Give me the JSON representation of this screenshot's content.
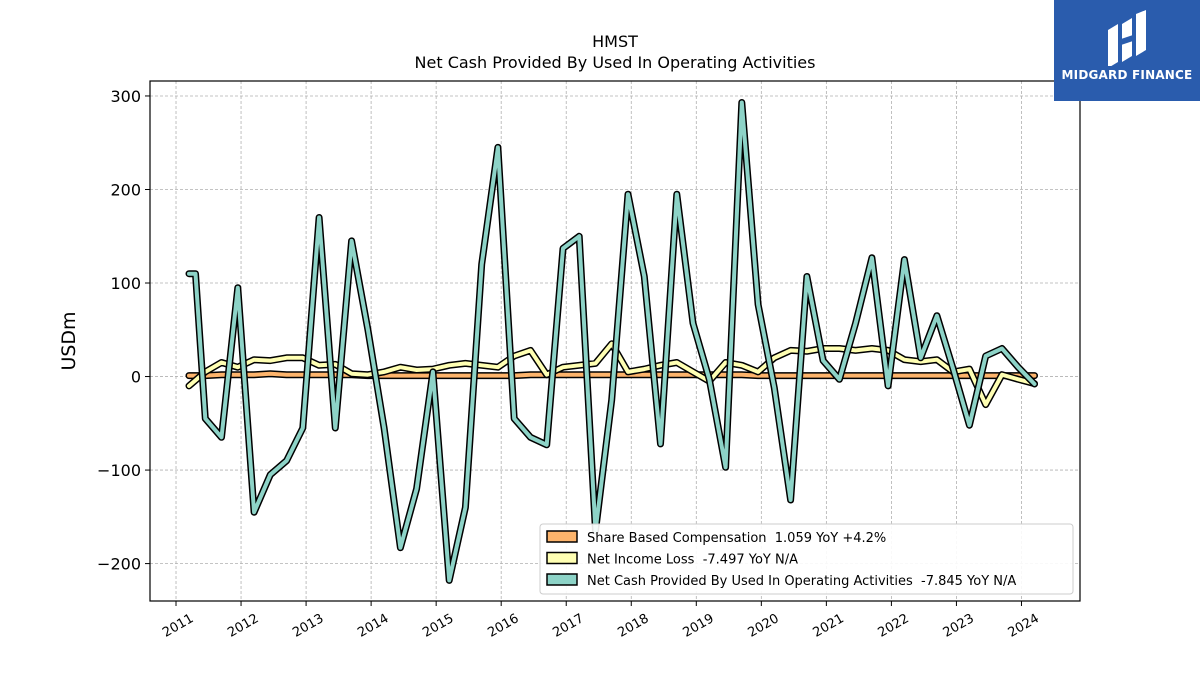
{
  "brand": {
    "name": "MIDGARD FINANCE",
    "bg_color": "#2a5cad"
  },
  "chart_data": {
    "type": "line",
    "title": "HMST",
    "subtitle": "Net Cash Provided By Used In Operating Activities",
    "ylabel": "USDm",
    "xlabel": "",
    "ylim": [
      -240,
      316
    ],
    "xlim": [
      2010.6,
      2024.9
    ],
    "yticks": [
      -200,
      -100,
      0,
      100,
      200,
      300
    ],
    "ytick_labels": [
      "−200",
      "−100",
      "0",
      "100",
      "200",
      "300"
    ],
    "xticks": [
      2011,
      2012,
      2013,
      2014,
      2015,
      2016,
      2017,
      2018,
      2019,
      2020,
      2021,
      2022,
      2023,
      2024
    ],
    "grid": true,
    "legend_position": "bottom-right",
    "series": [
      {
        "name": "Share Based Compensation  1.059 YoY +4.2%",
        "color": "#fdb46c",
        "values_x": [
          2011.2,
          2011.45,
          2011.7,
          2011.95,
          2012.2,
          2012.45,
          2012.7,
          2012.95,
          2013.2,
          2013.45,
          2013.7,
          2013.95,
          2014.2,
          2014.45,
          2014.7,
          2014.95,
          2015.2,
          2015.45,
          2015.7,
          2015.95,
          2016.2,
          2016.45,
          2016.7,
          2016.95,
          2017.2,
          2017.45,
          2017.7,
          2017.95,
          2018.2,
          2018.45,
          2018.7,
          2018.95,
          2019.2,
          2019.45,
          2019.7,
          2019.95,
          2020.2,
          2020.45,
          2020.7,
          2020.95,
          2021.2,
          2021.45,
          2021.7,
          2021.95,
          2022.2,
          2022.45,
          2022.7,
          2022.95,
          2023.2,
          2023.45,
          2023.7,
          2023.95,
          2024.2
        ],
        "values_y": [
          1,
          1,
          2,
          2,
          2,
          3,
          2,
          2,
          2,
          2,
          2,
          1,
          1,
          1,
          1,
          1,
          1,
          1,
          1,
          1,
          1,
          2,
          2,
          2,
          2,
          2,
          2,
          2,
          2,
          2,
          2,
          2,
          2,
          2,
          2,
          1,
          1,
          1,
          1,
          1,
          1,
          1,
          1,
          1,
          1,
          1,
          1,
          1,
          1,
          1,
          1,
          1,
          1
        ]
      },
      {
        "name": "Net Income Loss  -7.497 YoY N/A",
        "color": "#ffffb3",
        "values_x": [
          2011.2,
          2011.45,
          2011.7,
          2011.95,
          2012.2,
          2012.45,
          2012.7,
          2012.95,
          2013.2,
          2013.45,
          2013.7,
          2013.95,
          2014.2,
          2014.45,
          2014.7,
          2014.95,
          2015.2,
          2015.45,
          2015.7,
          2015.95,
          2016.2,
          2016.45,
          2016.7,
          2016.95,
          2017.2,
          2017.45,
          2017.7,
          2017.95,
          2018.2,
          2018.45,
          2018.7,
          2018.95,
          2019.2,
          2019.45,
          2019.7,
          2019.95,
          2020.2,
          2020.45,
          2020.7,
          2020.95,
          2021.2,
          2021.45,
          2021.7,
          2021.95,
          2022.2,
          2022.45,
          2022.7,
          2022.95,
          2023.2,
          2023.45,
          2023.7,
          2023.95,
          2024.2
        ],
        "values_y": [
          -10,
          5,
          15,
          10,
          18,
          17,
          20,
          20,
          12,
          13,
          3,
          2,
          5,
          10,
          7,
          8,
          12,
          14,
          12,
          10,
          22,
          28,
          2,
          10,
          12,
          14,
          35,
          5,
          8,
          12,
          15,
          5,
          -5,
          15,
          12,
          5,
          20,
          28,
          27,
          30,
          30,
          28,
          30,
          28,
          18,
          16,
          18,
          5,
          8,
          -30,
          2,
          -3,
          -7.5
        ]
      },
      {
        "name": "Net Cash Provided By Used In Operating Activities  -7.845 YoY N/A",
        "color": "#8dd3c7",
        "values_x": [
          2011.2,
          2011.3,
          2011.45,
          2011.7,
          2011.95,
          2012.2,
          2012.45,
          2012.7,
          2012.95,
          2013.2,
          2013.45,
          2013.7,
          2013.95,
          2014.2,
          2014.45,
          2014.7,
          2014.95,
          2015.2,
          2015.45,
          2015.7,
          2015.95,
          2016.2,
          2016.45,
          2016.7,
          2016.95,
          2017.2,
          2017.45,
          2017.7,
          2017.95,
          2018.2,
          2018.45,
          2018.7,
          2018.95,
          2019.2,
          2019.45,
          2019.7,
          2019.95,
          2020.2,
          2020.45,
          2020.7,
          2020.95,
          2021.2,
          2021.45,
          2021.7,
          2021.95,
          2022.2,
          2022.45,
          2022.7,
          2022.95,
          2023.2,
          2023.45,
          2023.7,
          2023.95,
          2024.2
        ],
        "values_y": [
          110,
          110,
          -45,
          -65,
          95,
          -145,
          -105,
          -90,
          -55,
          170,
          -55,
          145,
          50,
          -55,
          -183,
          -120,
          5,
          -218,
          -140,
          120,
          245,
          -45,
          -65,
          -73,
          137,
          150,
          -165,
          -25,
          195,
          107,
          -72,
          195,
          57,
          -3,
          -97,
          293,
          77,
          -12,
          -132,
          107,
          17,
          -3,
          57,
          127,
          -10,
          125,
          20,
          65,
          8,
          -52,
          22,
          30,
          10,
          -8
        ]
      }
    ]
  }
}
